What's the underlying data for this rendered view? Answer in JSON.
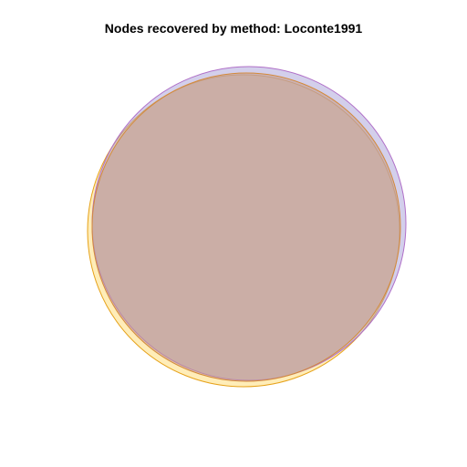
{
  "title": "Nodes recovered by method: Loconte1991",
  "colors": {
    "set_a_fill": "#ffd24d",
    "set_a_stroke": "#e6a21a",
    "set_b_fill": "#a8a0d8",
    "set_b_stroke": "#b070c8",
    "set_c_fill": "#c49a8a",
    "set_c_stroke": "#d48a3a",
    "background": "#ffffff"
  }
}
